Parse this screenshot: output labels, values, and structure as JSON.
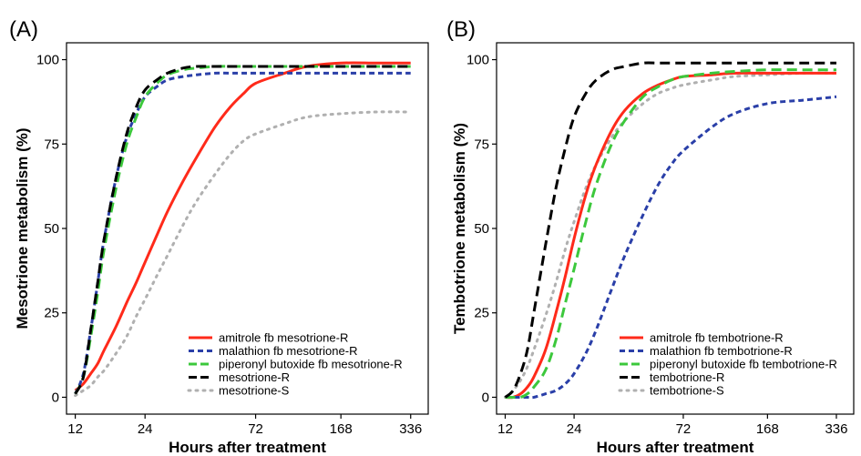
{
  "chart_data": [
    {
      "type": "line",
      "panel_label": "(A)",
      "title": "",
      "xlabel": "Hours after treatment",
      "ylabel": "Mesotrione metabolism (%)",
      "x_scale": "log",
      "xlim": [
        11,
        400
      ],
      "ylim": [
        -5,
        105
      ],
      "x_ticks": [
        12,
        24,
        72,
        168,
        336
      ],
      "x_tick_labels": [
        "12",
        "24",
        "72",
        "168",
        "336"
      ],
      "y_ticks": [
        0,
        25,
        50,
        75,
        100
      ],
      "y_tick_labels": [
        "0",
        "25",
        "50",
        "75",
        "100"
      ],
      "grid": false,
      "legend_position": "bottom-right",
      "x": [
        12,
        13,
        14,
        15,
        16,
        18,
        20,
        22,
        24,
        27,
        30,
        35,
        40,
        48,
        56,
        64,
        72,
        96,
        120,
        168,
        240,
        336
      ],
      "series": [
        {
          "name": "amitrole fb mesotrione-R",
          "color": "#ff2a1a",
          "dash": "solid",
          "values": [
            2,
            4,
            7,
            10,
            14,
            21,
            28,
            34,
            40,
            48,
            55,
            64,
            71,
            80,
            86,
            90,
            93,
            96,
            98,
            99,
            99,
            99
          ]
        },
        {
          "name": "malathion fb mesotrione-R",
          "color": "#2a3fa8",
          "dash": "dash-short",
          "values": [
            1,
            7,
            20,
            34,
            47,
            65,
            77,
            84,
            89,
            92,
            94,
            95,
            95.5,
            96,
            96,
            96,
            96,
            96,
            96,
            96,
            96,
            96
          ]
        },
        {
          "name": "piperonyl butoxide fb mesotrione-R",
          "color": "#3cc83c",
          "dash": "dash-long",
          "values": [
            1,
            6,
            18,
            31,
            44,
            62,
            75,
            83,
            89,
            93,
            95.5,
            97,
            97.5,
            98,
            98,
            98,
            98,
            98,
            98,
            98,
            98,
            98
          ]
        },
        {
          "name": "mesotrione-R",
          "color": "#000000",
          "dash": "dash-long",
          "values": [
            1,
            6,
            20,
            34,
            47,
            65,
            78,
            86,
            91,
            94,
            96,
            97.5,
            98,
            98,
            98,
            98,
            98,
            98,
            98,
            98,
            98,
            98
          ]
        },
        {
          "name": "mesotrione-S",
          "color": "#b0b0b0",
          "dash": "dot",
          "values": [
            0.5,
            2,
            3.5,
            6,
            8,
            13,
            18,
            24,
            29,
            36,
            42,
            51,
            58,
            66,
            72,
            76,
            78,
            81,
            83,
            84,
            84.5,
            84.5
          ]
        }
      ]
    },
    {
      "type": "line",
      "panel_label": "(B)",
      "title": "",
      "xlabel": "Hours after treatment",
      "ylabel": "Tembotrione metabolism (%)",
      "x_scale": "log",
      "xlim": [
        11,
        400
      ],
      "ylim": [
        -5,
        105
      ],
      "x_ticks": [
        12,
        24,
        72,
        168,
        336
      ],
      "x_tick_labels": [
        "12",
        "24",
        "72",
        "168",
        "336"
      ],
      "y_ticks": [
        0,
        25,
        50,
        75,
        100
      ],
      "y_tick_labels": [
        "0",
        "25",
        "50",
        "75",
        "100"
      ],
      "grid": false,
      "legend_position": "bottom-right",
      "x": [
        12,
        13,
        14,
        15,
        16,
        18,
        20,
        22,
        24,
        27,
        30,
        35,
        40,
        48,
        56,
        64,
        72,
        96,
        120,
        168,
        240,
        336
      ],
      "series": [
        {
          "name": "amitrole fb tembotrione-R",
          "color": "#ff2a1a",
          "dash": "solid",
          "values": [
            0,
            0,
            1,
            3,
            6,
            14,
            25,
            36,
            47,
            60,
            69,
            79,
            85,
            90,
            92.5,
            94,
            95,
            95.5,
            96,
            96,
            96,
            96
          ]
        },
        {
          "name": "malathion fb tembotrione-R",
          "color": "#2a3fa8",
          "dash": "dash-short",
          "values": [
            0,
            0,
            0,
            0,
            0,
            1,
            2,
            4,
            7,
            13,
            20,
            32,
            42,
            54,
            63,
            69,
            73,
            80,
            84,
            87,
            88,
            89
          ]
        },
        {
          "name": "piperonyl butoxide fb tembotrione-R",
          "color": "#3cc83c",
          "dash": "dash-long",
          "values": [
            0,
            0,
            0,
            1,
            3,
            8,
            17,
            28,
            38,
            52,
            63,
            75,
            82,
            89,
            92,
            94,
            95,
            96,
            96.5,
            97,
            97,
            97
          ]
        },
        {
          "name": "tembotrione-R",
          "color": "#000000",
          "dash": "dash-long",
          "values": [
            0,
            2,
            7,
            14,
            25,
            45,
            62,
            74,
            83,
            90,
            94,
            97,
            98,
            99,
            99,
            99,
            99,
            99,
            99,
            99,
            99,
            99
          ]
        },
        {
          "name": "tembotrione-S",
          "color": "#b0b0b0",
          "dash": "dot",
          "values": [
            0,
            2,
            5,
            9,
            14,
            24,
            34,
            44,
            52,
            62,
            69,
            77,
            82,
            87,
            90,
            91.5,
            92.5,
            94,
            95,
            95.5,
            96,
            96
          ]
        }
      ]
    }
  ]
}
